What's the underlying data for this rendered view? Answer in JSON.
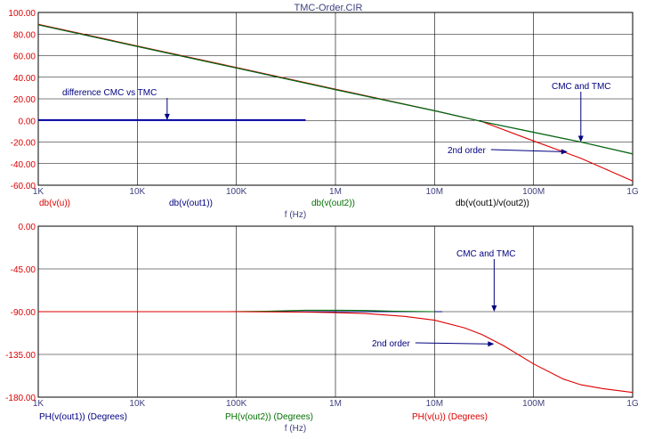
{
  "window": {
    "title": "TMC-Order.CIR"
  },
  "chart_data": [
    {
      "type": "line",
      "xscale": "log",
      "xlim": [
        1000,
        1000000000
      ],
      "ylim": [
        -60,
        100
      ],
      "grid": true,
      "xlabel": "f (Hz)",
      "x_ticks": [
        "1K",
        "10K",
        "100K",
        "1M",
        "10M",
        "100M",
        "1G"
      ],
      "y_ticks": [
        "100.00",
        "80.00",
        "60.00",
        "40.00",
        "20.00",
        "0.00",
        "-20.00",
        "-40.00",
        "-60.00"
      ],
      "legend": [
        {
          "label": "db(v(u))",
          "color": "#dd0000"
        },
        {
          "label": "db(v(out1))",
          "color": "#000080"
        },
        {
          "label": "db(v(out2))",
          "color": "#007000"
        },
        {
          "label": "db(v(out1)/v(out2))",
          "color": "#000000"
        }
      ],
      "series": [
        {
          "name": "db(v(u))",
          "color": "#dd0000",
          "x": [
            1000,
            10000,
            100000,
            1000000,
            10000000,
            30000000,
            100000000,
            300000000,
            1000000000
          ],
          "y": [
            89,
            69,
            49,
            29,
            9,
            -1,
            -19,
            -35,
            -56
          ]
        },
        {
          "name": "db(v(out1))",
          "color": "#000080",
          "x": [
            1000,
            10000,
            100000,
            1000000,
            10000000,
            30000000,
            100000000,
            300000000,
            1000000000
          ],
          "y": [
            88.5,
            68.5,
            48.5,
            28.5,
            9,
            -1,
            -11,
            -20,
            -31
          ]
        },
        {
          "name": "db(v(out2))",
          "color": "#007000",
          "x": [
            1000,
            10000,
            100000,
            1000000,
            10000000,
            30000000,
            100000000,
            300000000,
            1000000000
          ],
          "y": [
            88.5,
            68.5,
            48.5,
            28.5,
            9,
            -1,
            -11,
            -20,
            -31
          ]
        },
        {
          "name": "db(v(out1)/v(out2))",
          "color": "#0000a0",
          "x": [
            1000,
            500000
          ],
          "y": [
            0.3,
            0.3
          ]
        }
      ],
      "annotations": [
        {
          "text": "difference CMC vs TMC",
          "arrow_x": 20000,
          "arrow_y": 0.3
        },
        {
          "text": "CMC and TMC",
          "arrow_x": 300000000,
          "arrow_y": -20
        },
        {
          "text": "2nd order",
          "arrow_x": 220000000,
          "arrow_y": -29
        }
      ]
    },
    {
      "type": "line",
      "xscale": "log",
      "xlim": [
        1000,
        1000000000
      ],
      "ylim": [
        -180,
        0
      ],
      "grid": true,
      "xlabel": "f (Hz)",
      "x_ticks": [
        "1K",
        "10K",
        "100K",
        "1M",
        "10M",
        "100M",
        "1G"
      ],
      "y_ticks": [
        "0.00",
        "-45.00",
        "-90.00",
        "-135.00",
        "-180.00"
      ],
      "legend": [
        {
          "label": "PH(v(out1)) (Degrees)",
          "color": "#000080"
        },
        {
          "label": "PH(v(out2)) (Degrees)",
          "color": "#007000"
        },
        {
          "label": "PH(v(u)) (Degrees)",
          "color": "#dd0000"
        }
      ],
      "series": [
        {
          "name": "PH(v(out1)) (Degrees)",
          "color": "#000080",
          "x": [
            80000,
            200000,
            500000,
            1000000,
            3000000,
            12000000
          ],
          "y": [
            -90,
            -90,
            -90,
            -90,
            -90,
            -90
          ]
        },
        {
          "name": "PH(v(out2)) (Degrees)",
          "color": "#007000",
          "x": [
            80000,
            200000,
            500000,
            1000000,
            2000000,
            4000000,
            10000000
          ],
          "y": [
            -90,
            -89.5,
            -88.5,
            -88.5,
            -88.8,
            -89.5,
            -90
          ]
        },
        {
          "name": "PH(v(u)) (Degrees)",
          "color": "#dd0000",
          "x": [
            1000,
            10000,
            100000,
            500000,
            1000000,
            2000000,
            5000000,
            10000000,
            20000000,
            30000000,
            50000000,
            100000000,
            200000000,
            300000000,
            500000000,
            1000000000
          ],
          "y": [
            -90,
            -90,
            -90,
            -90.5,
            -91,
            -92,
            -95,
            -99,
            -107,
            -114,
            -126,
            -145,
            -161,
            -167,
            -171,
            -175
          ]
        }
      ],
      "annotations": [
        {
          "text": "CMC and TMC",
          "arrow_x": 40000000,
          "arrow_y": -90
        },
        {
          "text": "2nd order",
          "arrow_x": 40000000,
          "arrow_y": -124
        }
      ]
    }
  ]
}
